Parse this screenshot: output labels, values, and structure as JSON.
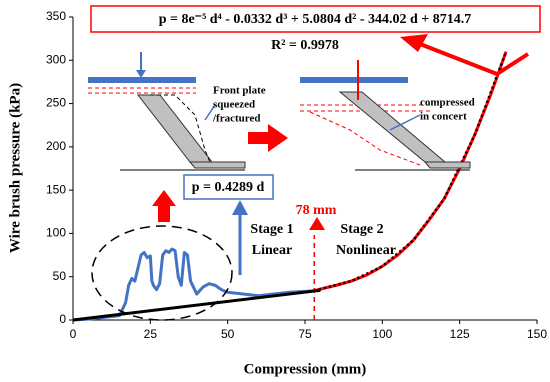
{
  "chart_data": {
    "type": "line",
    "xlabel": "Compression (mm)",
    "ylabel": "Wire brush pressure (kPa)",
    "xlim": [
      0,
      150
    ],
    "xticks": [
      0,
      25,
      50,
      75,
      100,
      125,
      150
    ],
    "ylim": [
      0,
      350
    ],
    "yticks": [
      0,
      50,
      100,
      150,
      200,
      250,
      300,
      350
    ],
    "stage_boundary": 78,
    "series": [
      {
        "color": "#4472c4",
        "style": "solid",
        "x": [
          0,
          5,
          10,
          15,
          17,
          18,
          19,
          20,
          21,
          22,
          23,
          24,
          25,
          25.5,
          26,
          27,
          28,
          29,
          30,
          31,
          32,
          33,
          34,
          35,
          36,
          37,
          38,
          40,
          42,
          44,
          46,
          48,
          50,
          55,
          60,
          65,
          70,
          75,
          78
        ],
        "values": [
          0,
          1,
          3,
          5,
          20,
          40,
          48,
          45,
          60,
          75,
          78,
          72,
          74,
          45,
          40,
          35,
          42,
          75,
          80,
          78,
          82,
          80,
          50,
          40,
          78,
          75,
          45,
          30,
          38,
          42,
          40,
          35,
          32,
          30,
          28,
          30,
          32,
          33,
          34
        ]
      },
      {
        "color": "#ff0000",
        "style": "solid",
        "x": [
          78,
          85,
          90,
          95,
          100,
          105,
          110,
          115,
          120,
          125,
          130,
          135,
          138,
          140
        ],
        "values": [
          34,
          40,
          45,
          52,
          62,
          75,
          92,
          115,
          140,
          175,
          215,
          260,
          290,
          310
        ]
      },
      {
        "color": "#000000",
        "style": "solid",
        "x": [
          0,
          80
        ],
        "values": [
          0,
          34.3
        ]
      },
      {
        "color": "#000000",
        "style": "dotted",
        "x": [
          78,
          90,
          100,
          110,
          120,
          130,
          140
        ],
        "values": [
          34,
          45,
          62,
          92,
          140,
          215,
          310
        ]
      }
    ],
    "annotations": [
      "p = 8e⁻⁵ d⁴ - 0.0332 d³ + 5.0804 d² - 344.02 d + 8714.7",
      "R² = 0.9978",
      "Front plate",
      "squeezed",
      "/fractured",
      "compressed",
      "in concert",
      "p = 0.4289 d",
      "78 mm",
      "Stage 1",
      "Linear",
      "Stage 2",
      "Nonlinear"
    ]
  }
}
